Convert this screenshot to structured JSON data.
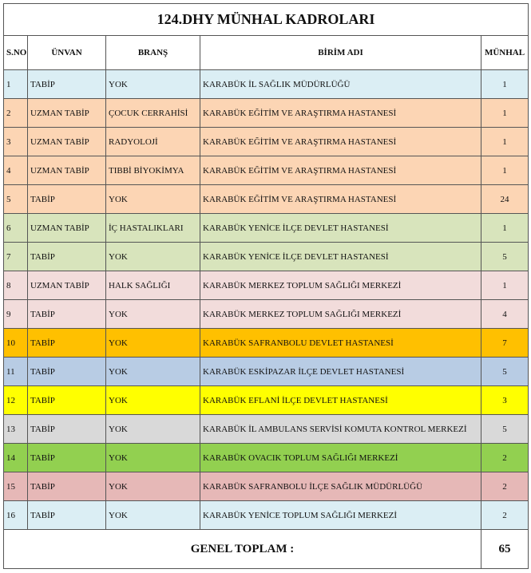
{
  "title": "124.DHY MÜNHAL KADROLARI",
  "table": {
    "headers": [
      "S.NO",
      "ÜNVAN",
      "BRANŞ",
      "BİRİM ADI",
      "MÜNHAL"
    ],
    "rows": [
      {
        "cells": [
          1,
          "TABİP",
          "YOK",
          "KARABÜK İL SAĞLIK MÜDÜRLÜĞÜ",
          1
        ],
        "color": "#dbeef4"
      },
      {
        "cells": [
          2,
          "UZMAN TABİP",
          "ÇOCUK CERRAHİSİ",
          "KARABÜK EĞİTİM VE ARAŞTIRMA HASTANESİ",
          1
        ],
        "color": "#fcd5b4"
      },
      {
        "cells": [
          3,
          "UZMAN TABİP",
          "RADYOLOJİ",
          "KARABÜK EĞİTİM VE ARAŞTIRMA HASTANESİ",
          1
        ],
        "color": "#fcd5b4"
      },
      {
        "cells": [
          4,
          "UZMAN TABİP",
          "TIBBİ BİYOKİMYA",
          "KARABÜK EĞİTİM VE ARAŞTIRMA HASTANESİ",
          1
        ],
        "color": "#fcd5b4"
      },
      {
        "cells": [
          5,
          "TABİP",
          "YOK",
          "KARABÜK EĞİTİM VE ARAŞTIRMA HASTANESİ",
          24
        ],
        "color": "#fcd5b4"
      },
      {
        "cells": [
          6,
          "UZMAN TABİP",
          "İÇ HASTALIKLARI",
          "KARABÜK YENİCE İLÇE DEVLET HASTANESİ",
          1
        ],
        "color": "#d8e4bc"
      },
      {
        "cells": [
          7,
          "TABİP",
          "YOK",
          "KARABÜK YENİCE İLÇE DEVLET HASTANESİ",
          5
        ],
        "color": "#d8e4bc"
      },
      {
        "cells": [
          8,
          "UZMAN TABİP",
          "HALK SAĞLIĞI",
          "KARABÜK MERKEZ TOPLUM SAĞLIĞI MERKEZİ",
          1
        ],
        "color": "#f2dcdb"
      },
      {
        "cells": [
          9,
          "TABİP",
          "YOK",
          "KARABÜK MERKEZ TOPLUM SAĞLIĞI MERKEZİ",
          4
        ],
        "color": "#f2dcdb"
      },
      {
        "cells": [
          10,
          "TABİP",
          "YOK",
          "KARABÜK SAFRANBOLU DEVLET HASTANESİ",
          7
        ],
        "color": "#ffc000"
      },
      {
        "cells": [
          11,
          "TABİP",
          "YOK",
          "KARABÜK ESKİPAZAR İLÇE DEVLET HASTANESİ",
          5
        ],
        "color": "#b8cce4"
      },
      {
        "cells": [
          12,
          "TABİP",
          "YOK",
          "KARABÜK EFLANİ İLÇE DEVLET HASTANESİ",
          3
        ],
        "color": "#ffff00"
      },
      {
        "cells": [
          13,
          "TABİP",
          "YOK",
          "KARABÜK İL AMBULANS SERVİSİ KOMUTA KONTROL MERKEZİ",
          5
        ],
        "color": "#d9d9d9"
      },
      {
        "cells": [
          14,
          "TABİP",
          "YOK",
          "KARABÜK OVACIK TOPLUM SAĞLIĞI MERKEZİ",
          2
        ],
        "color": "#92d050"
      },
      {
        "cells": [
          15,
          "TABİP",
          "YOK",
          "KARABÜK SAFRANBOLU İLÇE SAĞLIK MÜDÜRLÜĞÜ",
          2
        ],
        "color": "#e6b8b7"
      },
      {
        "cells": [
          16,
          "TABİP",
          "YOK",
          "KARABÜK YENİCE TOPLUM SAĞLIĞI MERKEZİ",
          2
        ],
        "color": "#dbeef4"
      }
    ],
    "footer": {
      "label": "GENEL TOPLAM :",
      "total": 65
    }
  }
}
